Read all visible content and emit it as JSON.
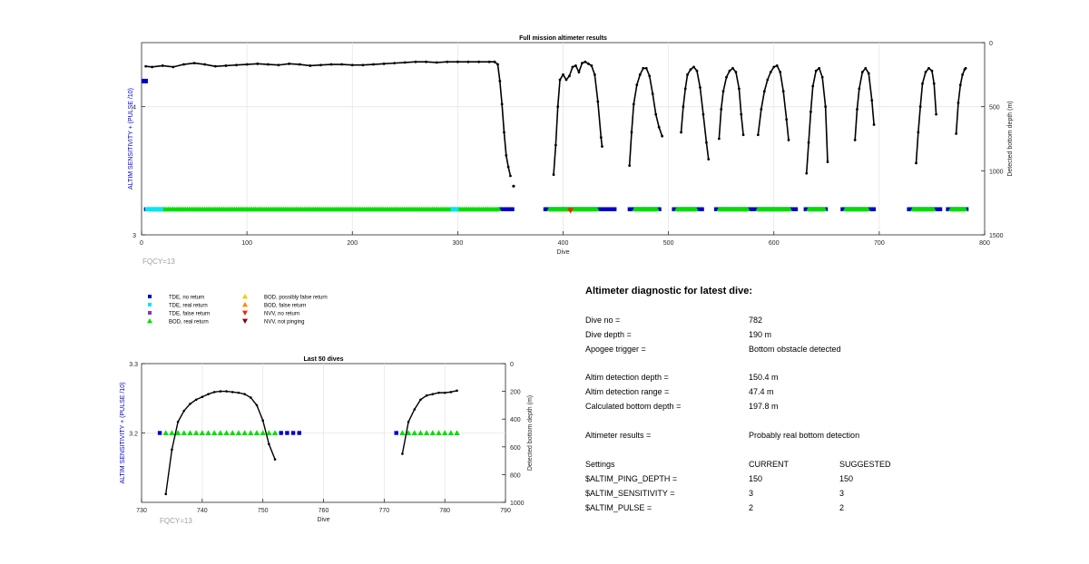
{
  "chart_data": [
    {
      "type": "scatter",
      "title": "Full mission altimeter results",
      "xlabel": "Dive",
      "ylabel_left": "ALTIM SENSITIVITY + (PULSE /10)",
      "ylabel_right": "Detected bottom depth (m)",
      "xlim": [
        0,
        800
      ],
      "ylim_left": [
        3,
        4.5
      ],
      "ylim_right": [
        1500,
        0
      ],
      "x_ticks": [
        "0",
        "100",
        "200",
        "300",
        "400",
        "500",
        "600",
        "700",
        "800"
      ],
      "y_left_ticks": [
        "3",
        "4"
      ],
      "y_right_ticks": [
        "0",
        "500",
        "1000",
        "1500"
      ],
      "grid": true,
      "footnote": "FQCY=13",
      "bottom_depth_segments": [
        {
          "x": [
            4,
            10,
            20,
            30,
            40,
            50,
            60,
            70,
            80,
            90,
            100,
            110,
            120,
            130,
            140,
            150,
            160,
            170,
            180,
            190,
            200,
            210,
            220,
            230,
            240,
            250,
            260,
            270,
            280,
            290,
            300,
            310,
            320,
            330,
            335,
            338,
            340,
            342,
            344,
            346,
            348,
            350
          ],
          "y": [
            185,
            190,
            180,
            190,
            170,
            160,
            170,
            185,
            180,
            175,
            170,
            165,
            170,
            175,
            165,
            170,
            180,
            175,
            170,
            170,
            175,
            175,
            170,
            165,
            160,
            155,
            150,
            150,
            155,
            150,
            150,
            150,
            150,
            150,
            150,
            170,
            300,
            480,
            700,
            880,
            970,
            1040
          ]
        },
        {
          "x": [
            391,
            393,
            395,
            397,
            400,
            403,
            406,
            409,
            412,
            415,
            418,
            421,
            424,
            427,
            430,
            433,
            436,
            437
          ],
          "y": [
            1030,
            800,
            500,
            290,
            250,
            290,
            260,
            190,
            180,
            230,
            160,
            150,
            165,
            180,
            250,
            460,
            740,
            810
          ]
        },
        {
          "x": [
            463,
            465,
            467,
            470,
            473,
            476,
            479,
            482,
            485,
            488,
            491,
            494
          ],
          "y": [
            960,
            700,
            480,
            330,
            250,
            200,
            200,
            260,
            400,
            560,
            660,
            730
          ]
        },
        {
          "x": [
            512,
            514,
            516,
            518,
            521,
            524,
            527,
            530,
            533,
            536,
            538
          ],
          "y": [
            700,
            500,
            360,
            250,
            210,
            190,
            220,
            350,
            560,
            780,
            910
          ]
        },
        {
          "x": [
            548,
            550,
            552,
            555,
            558,
            561,
            564,
            567,
            569,
            571
          ],
          "y": [
            750,
            520,
            380,
            270,
            220,
            200,
            230,
            360,
            560,
            720
          ]
        },
        {
          "x": [
            585,
            588,
            591,
            594,
            597,
            600,
            603,
            606,
            609,
            612,
            614
          ],
          "y": [
            720,
            520,
            380,
            290,
            230,
            190,
            180,
            230,
            380,
            600,
            760
          ]
        },
        {
          "x": [
            631,
            633,
            635,
            637,
            640,
            643,
            646,
            649,
            651
          ],
          "y": [
            1020,
            780,
            540,
            340,
            220,
            200,
            270,
            500,
            930
          ]
        },
        {
          "x": [
            677,
            679,
            681,
            684,
            687,
            690,
            693,
            695
          ],
          "y": [
            760,
            520,
            360,
            230,
            200,
            240,
            450,
            640
          ]
        },
        {
          "x": [
            735,
            737,
            739,
            741,
            744,
            747,
            750,
            752,
            754
          ],
          "y": [
            940,
            700,
            500,
            320,
            230,
            200,
            220,
            320,
            560
          ]
        },
        {
          "x": [
            773,
            775,
            777,
            779,
            781,
            782
          ],
          "y": [
            710,
            470,
            330,
            250,
            210,
            200
          ]
        }
      ],
      "isolated_point": {
        "x": 353,
        "y": 1120
      },
      "left_axis_marker": {
        "x_range": [
          0,
          6
        ],
        "y": 4.2
      },
      "tde_no_return_ranges": [
        [
          4,
          6
        ],
        [
          340,
          353
        ],
        [
          383,
          450
        ],
        [
          463,
          492
        ],
        [
          505,
          533
        ],
        [
          545,
          580
        ],
        [
          582,
          622
        ],
        [
          630,
          650
        ],
        [
          665,
          695
        ],
        [
          728,
          758
        ],
        [
          765,
          783
        ]
      ],
      "bod_real_return_ranges": [
        [
          6,
          340
        ],
        [
          387,
          432
        ],
        [
          468,
          490
        ],
        [
          508,
          527
        ],
        [
          548,
          575
        ],
        [
          585,
          615
        ],
        [
          633,
          648
        ],
        [
          668,
          690
        ],
        [
          732,
          752
        ],
        [
          768,
          782
        ]
      ],
      "tde_real_return_ranges": [
        [
          5,
          20
        ],
        [
          295,
          300
        ]
      ],
      "marker_y": 3.2,
      "nvv_no_return": [
        {
          "x": 407,
          "y": 3.19
        }
      ]
    },
    {
      "type": "scatter",
      "title": "Last 50 dives",
      "xlabel": "Dive",
      "ylabel_left": "ALTIM SENSITIVITY + (PULSE /10)",
      "ylabel_right": "Detected bottom depth (m)",
      "xlim": [
        730,
        790
      ],
      "ylim_left": [
        3.1,
        3.3
      ],
      "ylim_right": [
        1000,
        0
      ],
      "x_ticks": [
        "730",
        "740",
        "750",
        "760",
        "770",
        "780",
        "790"
      ],
      "y_left_ticks": [
        "3.2",
        "3.3"
      ],
      "y_right_ticks": [
        "0",
        "200",
        "400",
        "600",
        "800",
        "1000"
      ],
      "grid": true,
      "footnote": "FQCY=13",
      "bottom_depth_segments": [
        {
          "x": [
            734,
            735,
            736,
            737,
            738,
            739,
            740,
            741,
            742,
            743,
            744,
            745,
            746,
            747,
            748,
            749,
            750,
            751,
            752
          ],
          "y": [
            940,
            620,
            420,
            340,
            290,
            260,
            240,
            220,
            205,
            200,
            200,
            205,
            210,
            220,
            245,
            300,
            410,
            580,
            690
          ]
        },
        {
          "x": [
            773,
            774,
            775,
            776,
            777,
            778,
            779,
            780,
            781,
            782
          ],
          "y": [
            650,
            420,
            330,
            260,
            230,
            220,
            210,
            210,
            205,
            195
          ]
        }
      ],
      "tde_no_return": [
        733,
        753,
        754,
        755,
        756,
        772
      ],
      "bod_real_return": [
        734,
        735,
        736,
        737,
        738,
        739,
        740,
        741,
        742,
        743,
        744,
        745,
        746,
        747,
        748,
        749,
        750,
        751,
        752,
        773,
        774,
        775,
        776,
        777,
        778,
        779,
        780,
        781,
        782
      ],
      "marker_y": 3.2
    }
  ],
  "legend": [
    {
      "label": "TDE, no return",
      "color": "#0000cc",
      "shape": "square"
    },
    {
      "label": "TDE, real return",
      "color": "#00e5ff",
      "shape": "square"
    },
    {
      "label": "TDE, false return",
      "color": "#7a3bcc",
      "shape": "square"
    },
    {
      "label": "BOD, real return",
      "color": "#00e000",
      "shape": "triangle-up"
    },
    {
      "label": "BOD, possibly false return",
      "color": "#f2cc00",
      "shape": "triangle-up"
    },
    {
      "label": "BOD, false return",
      "color": "#ff8800",
      "shape": "triangle-up"
    },
    {
      "label": "NVV, no return",
      "color": "#ff2200",
      "shape": "triangle-down"
    },
    {
      "label": "NVV, not pinging",
      "color": "#8b0000",
      "shape": "triangle-down"
    }
  ],
  "diagnostic": {
    "title": "Altimeter diagnostic for latest dive:",
    "rows": [
      {
        "label": "Dive no =",
        "current": "782",
        "suggested": ""
      },
      {
        "label": "Dive depth =",
        "current": "190 m",
        "suggested": ""
      },
      {
        "label": "Apogee trigger =",
        "current": "Bottom obstacle detected",
        "suggested": ""
      },
      {
        "label": "Altim detection depth =",
        "current": "150.4 m",
        "suggested": ""
      },
      {
        "label": "Altim detection range =",
        "current": "47.4 m",
        "suggested": ""
      },
      {
        "label": "Calculated bottom depth =",
        "current": "197.8 m",
        "suggested": ""
      },
      {
        "label": "Altimeter results =",
        "current": "Probably real bottom detection",
        "suggested": ""
      },
      {
        "label": "Settings",
        "current": "CURRENT",
        "suggested": "SUGGESTED"
      },
      {
        "label": "$ALTIM_PING_DEPTH =",
        "current": "150",
        "suggested": "150"
      },
      {
        "label": "$ALTIM_SENSITIVITY =",
        "current": "3",
        "suggested": "3"
      },
      {
        "label": "$ALTIM_PULSE =",
        "current": "2",
        "suggested": "2"
      }
    ]
  }
}
